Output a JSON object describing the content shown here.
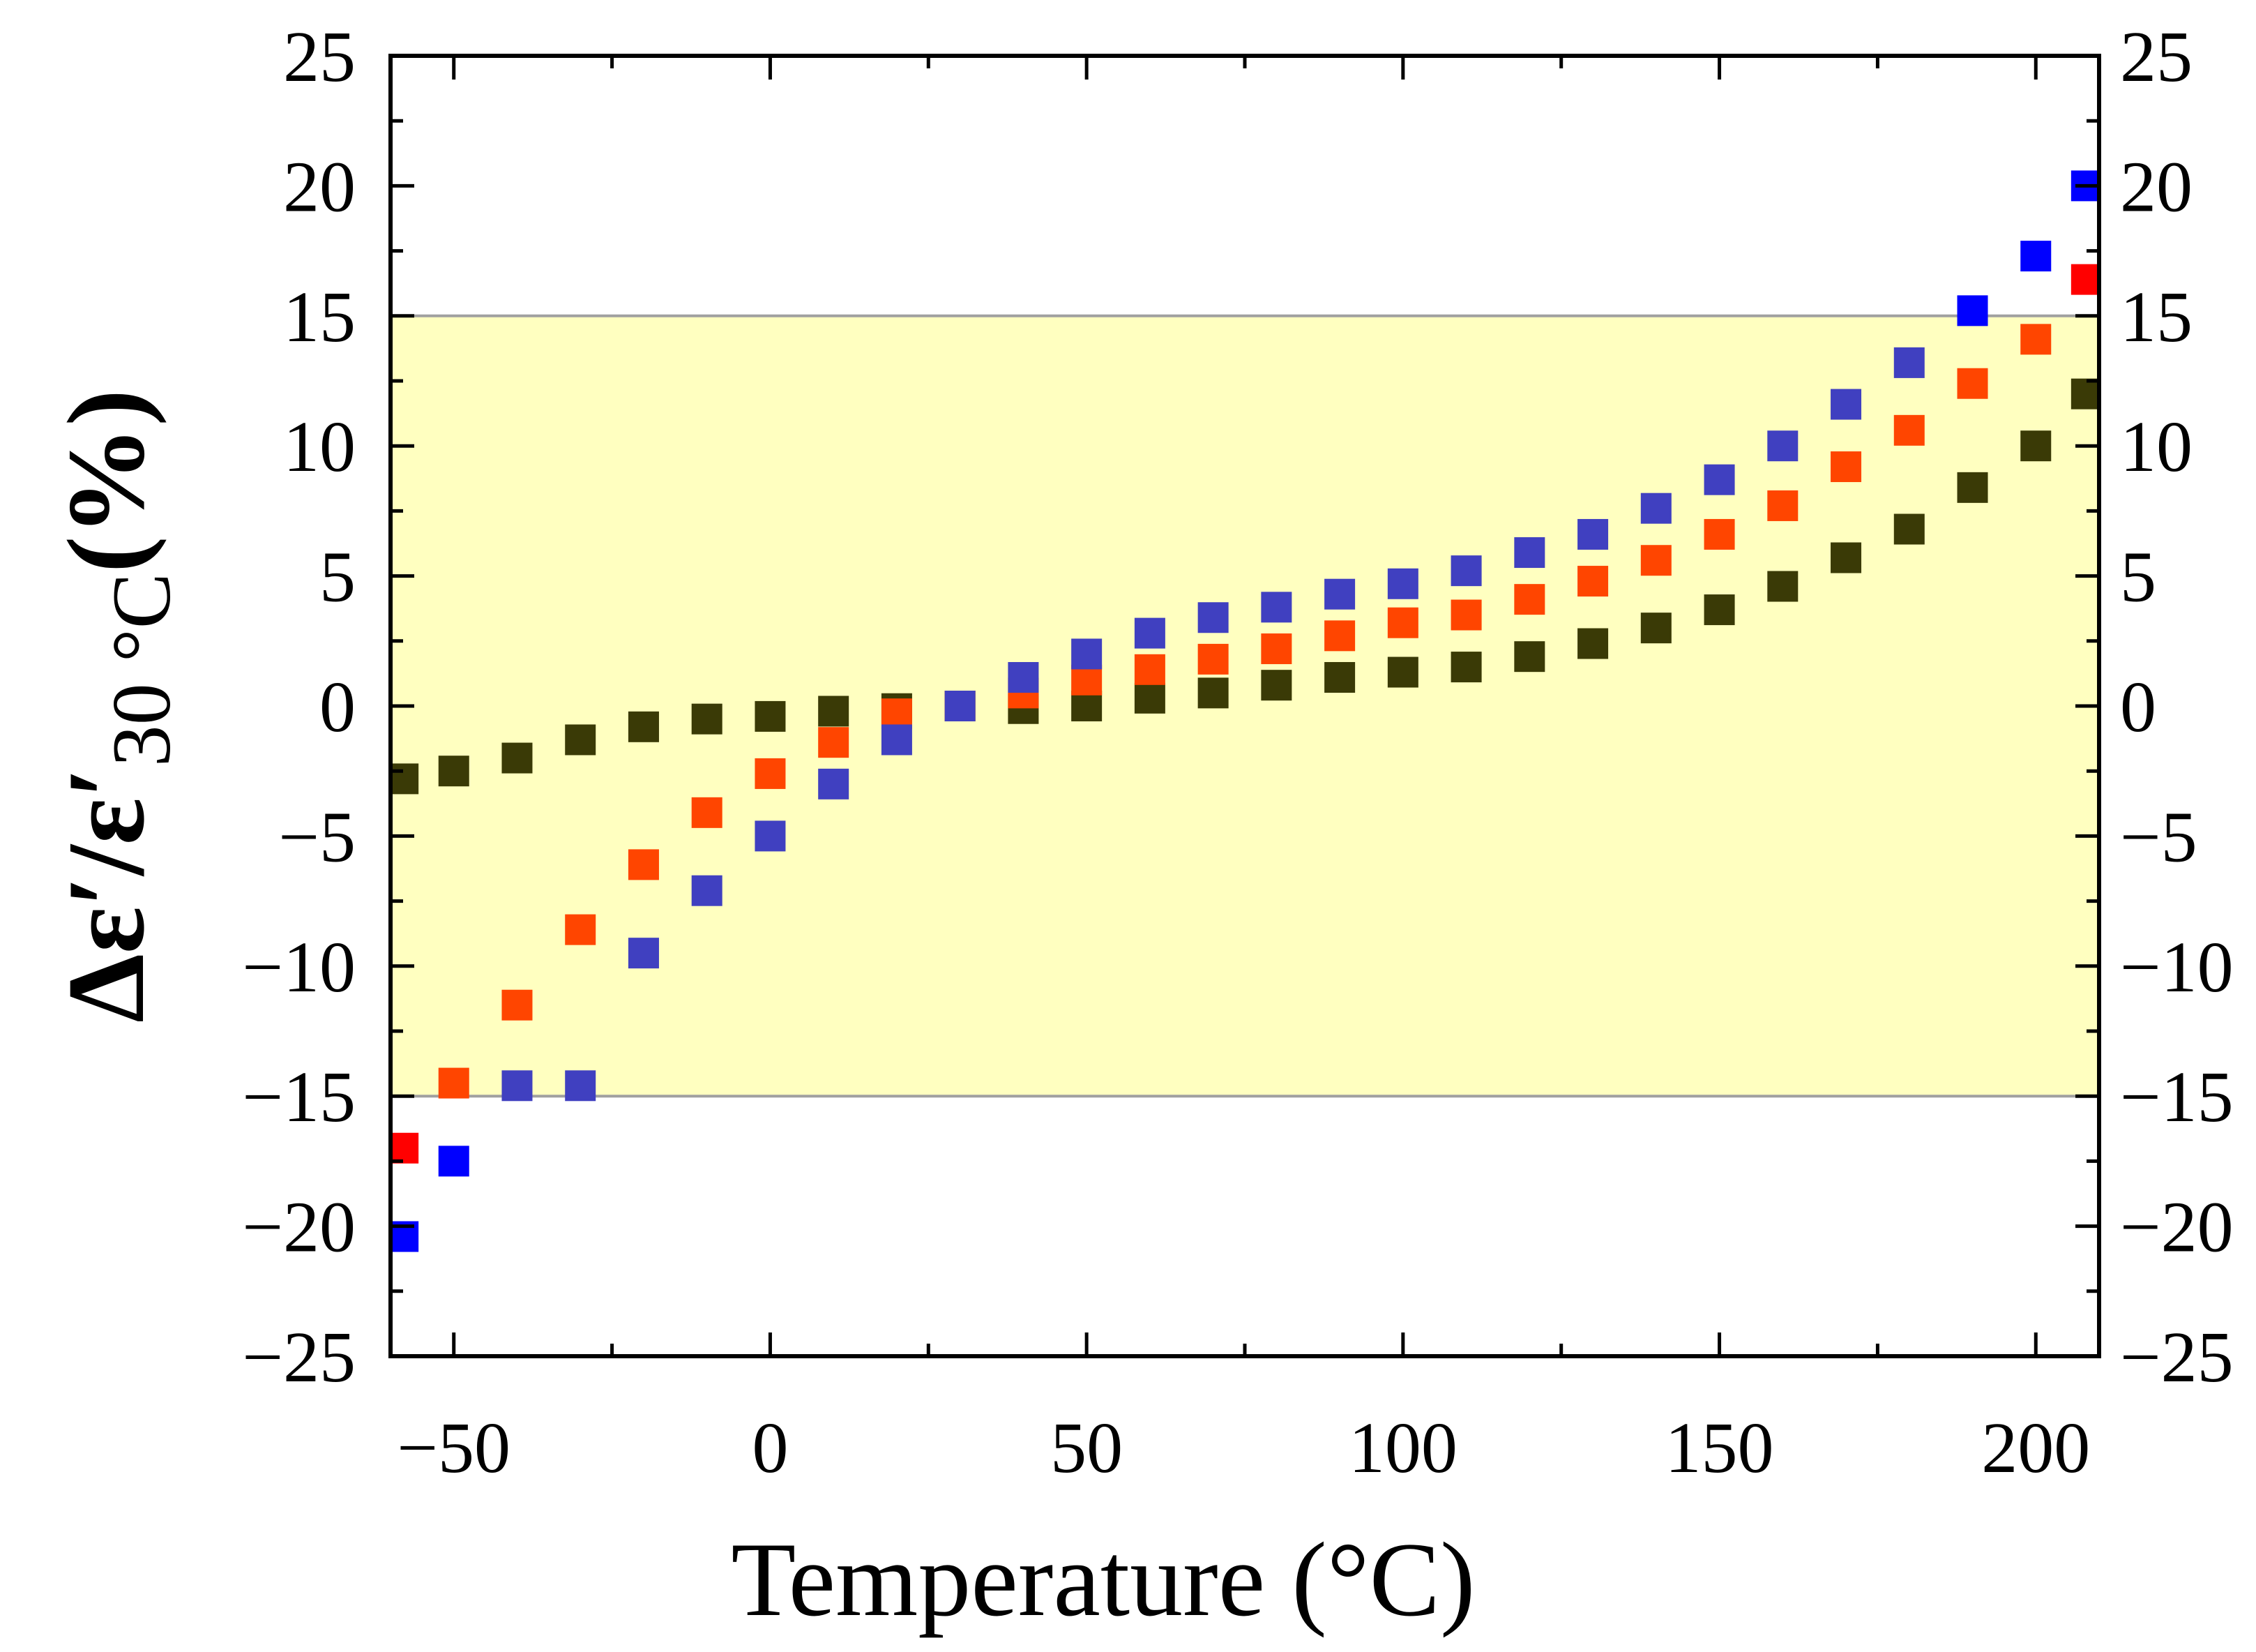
{
  "chart_data": {
    "type": "scatter",
    "xlabel": "Temperature (°C)",
    "ylabel": {
      "main": "Δε′/ε′",
      "subscript": "30 °C",
      "suffix": "(%)"
    },
    "xlim": [
      -60,
      210
    ],
    "ylim": [
      -25,
      25
    ],
    "x_ticks": [
      -50,
      0,
      50,
      100,
      150,
      200
    ],
    "x_tick_labels": [
      "−50",
      "0",
      "50",
      "100",
      "150",
      "200"
    ],
    "y_ticks": [
      -25,
      -20,
      -15,
      -10,
      -5,
      0,
      5,
      10,
      15,
      20,
      25
    ],
    "y_tick_labels": [
      "−25",
      "−20",
      "−15",
      "−10",
      "−5",
      "0",
      "5",
      "10",
      "15",
      "20",
      "25"
    ],
    "band": {
      "y_min": -15,
      "y_max": 15,
      "color": "#ffffc0",
      "edge_color": "#a0a0a0"
    },
    "colors": {
      "in_band": [
        "#3a3a3a"
      ],
      "out_of_band": [
        "#ff0000"
      ]
    },
    "series": [
      {
        "name": "series-dark",
        "color": "#3a3a06",
        "out_color": "#3a3a06",
        "x": [
          -58,
          -50,
          -40,
          -30,
          -20,
          -10,
          0,
          10,
          20,
          30,
          40,
          50,
          60,
          70,
          80,
          90,
          100,
          110,
          120,
          130,
          140,
          150,
          160,
          170,
          180,
          190,
          200,
          208
        ],
        "y": [
          -2.8,
          -2.5,
          -2.0,
          -1.3,
          -0.8,
          -0.5,
          -0.4,
          -0.2,
          -0.1,
          0.0,
          -0.1,
          0.0,
          0.3,
          0.5,
          0.8,
          1.1,
          1.3,
          1.5,
          1.9,
          2.4,
          3.0,
          3.7,
          4.6,
          5.7,
          6.8,
          8.4,
          10.0,
          12.0
        ]
      },
      {
        "name": "series-red",
        "color": "#ff4500",
        "out_color": "#ff0000",
        "x": [
          -58,
          -50,
          -40,
          -30,
          -20,
          -10,
          0,
          10,
          20,
          30,
          40,
          50,
          60,
          70,
          80,
          90,
          100,
          110,
          120,
          130,
          140,
          150,
          160,
          170,
          180,
          190,
          200,
          208
        ],
        "y": [
          -17.0,
          -14.5,
          -11.5,
          -8.6,
          -6.1,
          -4.1,
          -2.6,
          -1.4,
          -0.3,
          0.0,
          0.5,
          1.0,
          1.4,
          1.8,
          2.2,
          2.7,
          3.2,
          3.5,
          4.1,
          4.8,
          5.6,
          6.6,
          7.7,
          9.2,
          10.6,
          12.4,
          14.1,
          16.4
        ]
      },
      {
        "name": "series-blue",
        "color": "#4040c0",
        "out_color": "#0000ff",
        "x": [
          -58,
          -50,
          -40,
          -30,
          -20,
          -10,
          0,
          10,
          20,
          30,
          40,
          50,
          60,
          70,
          80,
          90,
          100,
          110,
          120,
          130,
          140,
          150,
          160,
          170,
          180,
          190,
          200,
          208
        ],
        "y": [
          -20.4,
          -17.5,
          -14.6,
          -14.6,
          -9.5,
          -7.1,
          -5.0,
          -3.0,
          -1.3,
          0.0,
          1.1,
          2.0,
          2.8,
          3.4,
          3.8,
          4.3,
          4.7,
          5.2,
          5.9,
          6.6,
          7.6,
          8.7,
          10.0,
          11.6,
          13.2,
          15.2,
          17.3,
          20.0
        ]
      }
    ]
  }
}
